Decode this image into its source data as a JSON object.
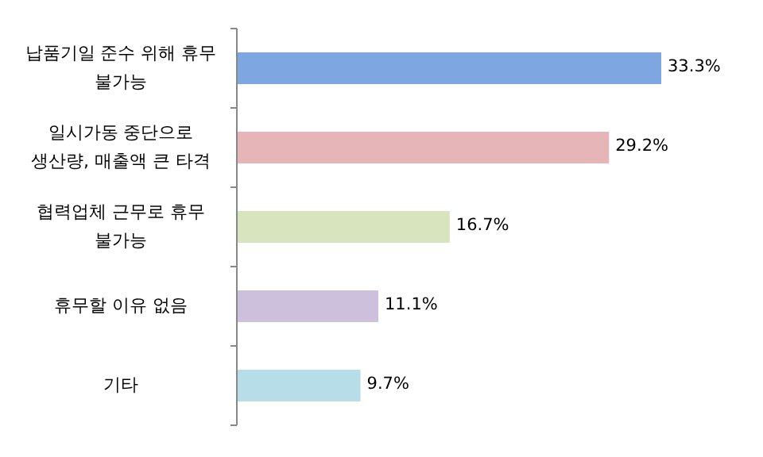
{
  "chart_data": {
    "type": "bar",
    "orientation": "horizontal",
    "categories": [
      "납품기일 준수 위해 휴무 불가능",
      "일시가동 중단으로 생산량, 매출액 큰 타격",
      "협력업체 근무로 휴무 불가능",
      "휴무할 이유 없음",
      "기타"
    ],
    "values": [
      33.3,
      29.2,
      16.7,
      11.1,
      9.7
    ],
    "value_labels": [
      "33.3%",
      "29.2%",
      "16.7%",
      "11.1%",
      "9.7%"
    ],
    "colors": [
      "#7ea6e0",
      "#e6b5b8",
      "#d7e4bd",
      "#ccc0dc",
      "#b7dde8"
    ]
  }
}
